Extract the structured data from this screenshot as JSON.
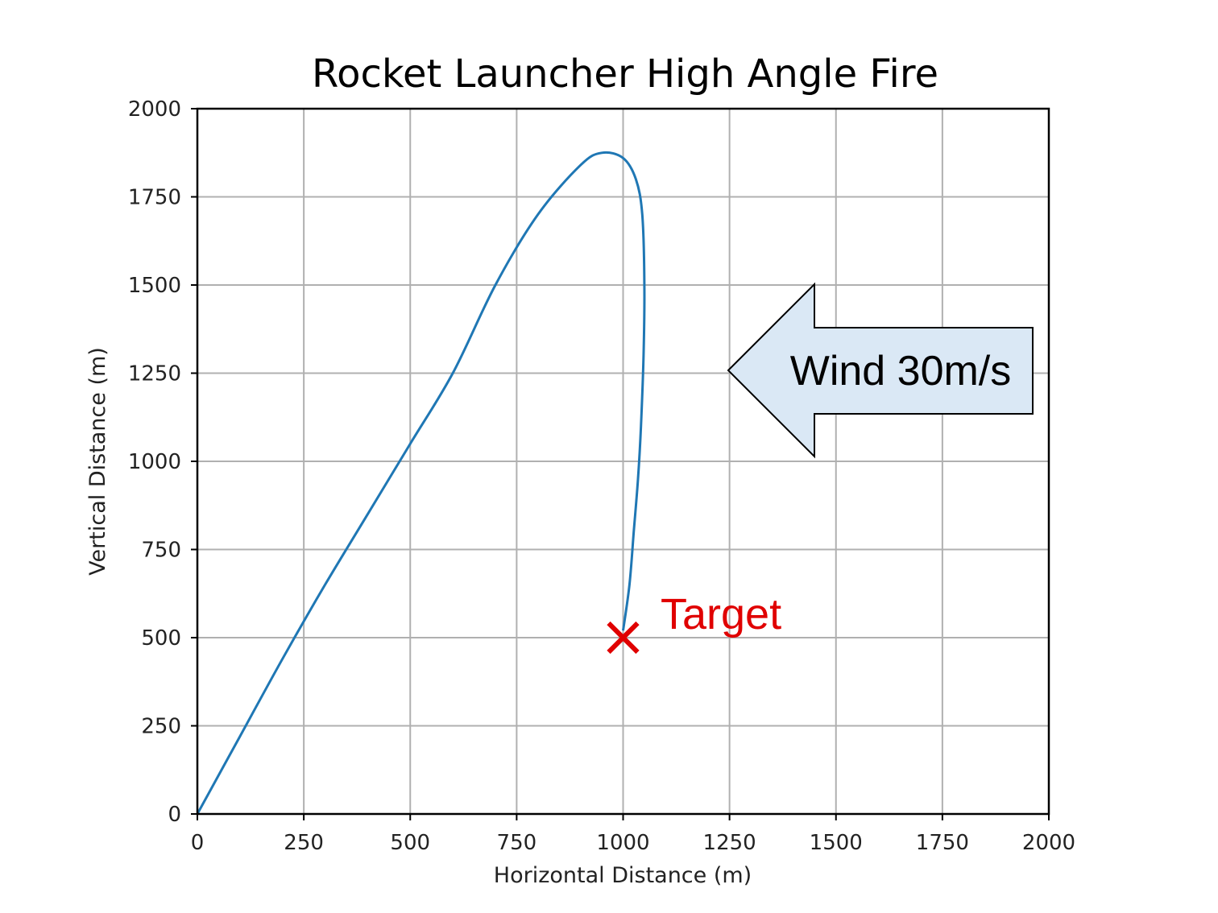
{
  "chart_data": {
    "type": "line",
    "title": "Rocket Launcher High Angle Fire",
    "xlabel": "Horizontal Distance (m)",
    "ylabel": "Vertical Distance (m)",
    "xlim": [
      0,
      2000
    ],
    "ylim": [
      0,
      2000
    ],
    "xticks": [
      0,
      250,
      500,
      750,
      1000,
      1250,
      1500,
      1750,
      2000
    ],
    "yticks": [
      0,
      250,
      500,
      750,
      1000,
      1250,
      1500,
      1750,
      2000
    ],
    "grid": true,
    "series": [
      {
        "color": "#1f77b4",
        "x": [
          0,
          100,
          200,
          300,
          400,
          500,
          600,
          700,
          800,
          900,
          950,
          1000,
          1030,
          1045,
          1050,
          1048,
          1042,
          1035,
          1025,
          1015,
          1000
        ],
        "y": [
          0,
          220,
          440,
          650,
          850,
          1050,
          1250,
          1500,
          1700,
          1840,
          1875,
          1860,
          1800,
          1700,
          1500,
          1300,
          1100,
          950,
          800,
          650,
          520
        ]
      }
    ],
    "annotations": {
      "wind": {
        "text": "Wind 30m/s",
        "direction": "left",
        "fill": "#dae8f5"
      },
      "target": {
        "text": "Target",
        "x": 1000,
        "y": 500,
        "marker": "x",
        "color": "#e00000"
      }
    }
  }
}
